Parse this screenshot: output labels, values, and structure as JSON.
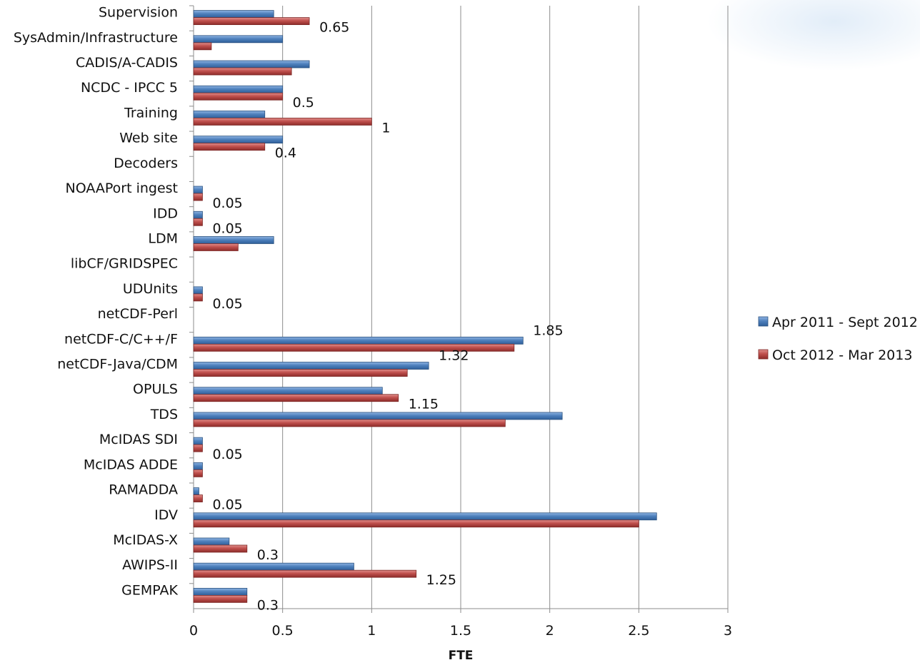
{
  "chart_data": {
    "type": "bar",
    "orientation": "horizontal",
    "categories": [
      "Supervision",
      "SysAdmin/Infrastructure",
      "CADIS/A-CADIS",
      "NCDC - IPCC 5",
      "Training",
      "Web site",
      "Decoders",
      "NOAAPort ingest",
      "IDD",
      "LDM",
      "libCF/GRIDSPEC",
      "UDUnits",
      "netCDF-Perl",
      "netCDF-C/C++/F",
      "netCDF-Java/CDM",
      "OPULS",
      "TDS",
      "McIDAS SDI",
      "McIDAS ADDE",
      "RAMADDA",
      "IDV",
      "McIDAS-X",
      "AWIPS-II",
      "GEMPAK"
    ],
    "series": [
      {
        "name": "Apr 2011 - Sept 2012",
        "color": "#4f81bd",
        "values": [
          0.45,
          0.5,
          0.65,
          0.5,
          0.4,
          0.5,
          0,
          0.05,
          0.05,
          0.45,
          0,
          0.05,
          0,
          1.85,
          1.32,
          1.06,
          2.07,
          0.05,
          0.05,
          0.03,
          2.6,
          0.2,
          0.9,
          0.3
        ]
      },
      {
        "name": "Oct 2012 - Mar 2013",
        "color": "#c0504d",
        "values": [
          0.65,
          0.1,
          0.55,
          0.5,
          1.0,
          0.4,
          0,
          0.05,
          0.05,
          0.25,
          0,
          0.05,
          0,
          1.8,
          1.2,
          1.15,
          1.75,
          0.05,
          0.05,
          0.05,
          2.5,
          0.3,
          1.25,
          0.3
        ]
      }
    ],
    "data_labels": [
      {
        "category": "Supervision",
        "series": 1,
        "text": "0.65"
      },
      {
        "category": "NCDC - IPCC 5",
        "series": 1,
        "text": "0.5"
      },
      {
        "category": "Training",
        "series": 1,
        "text": "1"
      },
      {
        "category": "Web site",
        "series": 1,
        "text": "0.4"
      },
      {
        "category": "NOAAPort ingest",
        "series": 1,
        "text": "0.05"
      },
      {
        "category": "IDD",
        "series": 1,
        "text": "0.05"
      },
      {
        "category": "UDUnits",
        "series": 1,
        "text": "0.05"
      },
      {
        "category": "netCDF-C/C++/F",
        "series": 0,
        "text": "1.85"
      },
      {
        "category": "netCDF-Java/CDM",
        "series": 0,
        "text": "1.32"
      },
      {
        "category": "OPULS",
        "series": 1,
        "text": "1.15"
      },
      {
        "category": "McIDAS SDI",
        "series": 1,
        "text": "0.05"
      },
      {
        "category": "RAMADDA",
        "series": 1,
        "text": "0.05"
      },
      {
        "category": "McIDAS-X",
        "series": 1,
        "text": "0.3"
      },
      {
        "category": "AWIPS-II",
        "series": 1,
        "text": "1.25"
      },
      {
        "category": "GEMPAK",
        "series": 1,
        "text": "0.3"
      }
    ],
    "x_ticks": [
      "0",
      "0.5",
      "1",
      "1.5",
      "2",
      "2.5",
      "3"
    ],
    "xlim": [
      0,
      3
    ],
    "xlabel": "FTE",
    "ylabel": "",
    "title": "",
    "grid": "vertical",
    "legend": "right"
  }
}
